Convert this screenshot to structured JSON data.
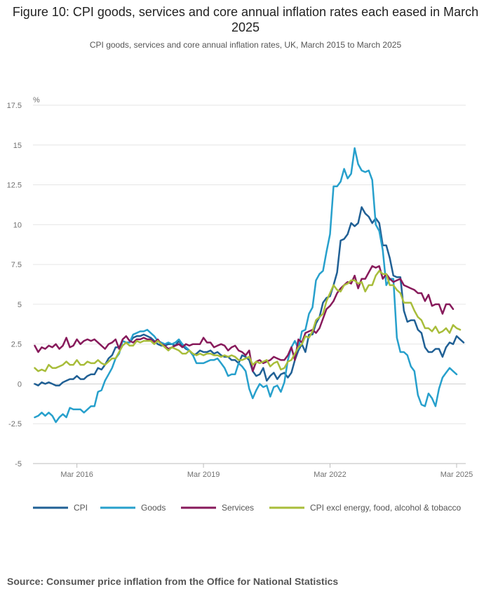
{
  "page": {
    "title": "Figure 10: CPI goods, services and core annual inflation rates each eased in March 2025",
    "subtitle": "CPI goods, services and core annual inflation rates, UK, March 2015 to March 2025",
    "source": "Source: Consumer price inflation from the Office for National Statistics"
  },
  "chart_data": {
    "type": "line",
    "y_unit_label": "%",
    "ylim": [
      -5,
      17.5
    ],
    "y_ticks": [
      -5,
      -2.5,
      0,
      2.5,
      5,
      7.5,
      10,
      12.5,
      15,
      17.5
    ],
    "y_tick_labels": [
      "-5",
      "-2.5",
      "0",
      "2.5",
      "5",
      "7.5",
      "10",
      "12.5",
      "15",
      "17.5"
    ],
    "grid": true,
    "x_start": "Mar 2015",
    "x_end": "Mar 2025",
    "x_ticks": [
      {
        "label": "Mar 2016",
        "index": 12
      },
      {
        "label": "Mar 2019",
        "index": 48
      },
      {
        "label": "Mar 2022",
        "index": 84
      },
      {
        "label": "Mar 2025",
        "index": 120
      }
    ],
    "legend_position": "bottom",
    "colors": {
      "CPI": "#206095",
      "Goods": "#27a0cc",
      "Services": "#871a5b",
      "Core": "#a8bd3a"
    },
    "series": [
      {
        "name": "CPI",
        "key": "CPI",
        "values": [
          0.0,
          -0.1,
          0.1,
          0.0,
          0.1,
          0.0,
          -0.1,
          -0.1,
          0.1,
          0.2,
          0.3,
          0.3,
          0.5,
          0.3,
          0.3,
          0.5,
          0.6,
          0.6,
          1.0,
          0.9,
          1.2,
          1.6,
          1.8,
          2.3,
          2.3,
          2.7,
          2.6,
          2.6,
          2.9,
          3.0,
          3.0,
          3.1,
          3.0,
          2.9,
          2.7,
          2.5,
          2.4,
          2.4,
          2.5,
          2.5,
          2.4,
          2.7,
          2.4,
          2.2,
          2.1,
          1.8,
          1.9,
          2.1,
          2.0,
          2.0,
          2.1,
          1.9,
          2.0,
          1.8,
          1.7,
          1.7,
          1.5,
          1.5,
          1.3,
          1.8,
          1.7,
          1.5,
          0.8,
          0.5,
          0.6,
          1.0,
          0.2,
          0.5,
          0.7,
          0.3,
          0.6,
          0.7,
          0.4,
          0.7,
          1.5,
          2.1,
          2.5,
          2.0,
          3.1,
          3.1,
          3.8,
          4.2,
          5.1,
          5.4,
          5.5,
          6.2,
          7.0,
          9.0,
          9.1,
          9.4,
          10.1,
          9.9,
          10.1,
          11.1,
          10.7,
          10.5,
          10.1,
          10.4,
          10.1,
          8.7,
          8.7,
          7.9,
          6.8,
          6.7,
          6.7,
          4.6,
          3.9,
          4.0,
          4.0,
          3.4,
          3.2,
          2.3,
          2.0,
          2.0,
          2.2,
          2.2,
          1.7,
          2.3,
          2.6,
          2.5,
          3.0,
          2.8,
          2.6
        ]
      },
      {
        "name": "Goods",
        "key": "Goods",
        "values": [
          -2.1,
          -2.0,
          -1.8,
          -2.0,
          -1.8,
          -2.0,
          -2.4,
          -2.1,
          -1.9,
          -2.1,
          -1.5,
          -1.6,
          -1.6,
          -1.6,
          -1.8,
          -1.6,
          -1.4,
          -1.4,
          -0.5,
          -0.4,
          0.2,
          0.6,
          1.0,
          1.6,
          1.9,
          2.7,
          2.6,
          2.6,
          3.1,
          3.2,
          3.3,
          3.3,
          3.4,
          3.2,
          3.0,
          2.7,
          2.6,
          2.5,
          2.6,
          2.5,
          2.6,
          2.8,
          2.5,
          2.3,
          2.1,
          1.8,
          1.3,
          1.3,
          1.3,
          1.4,
          1.5,
          1.5,
          1.6,
          1.3,
          1.0,
          0.5,
          0.6,
          0.6,
          1.3,
          1.1,
          0.8,
          -0.3,
          -0.9,
          -0.4,
          0.0,
          -0.2,
          -0.1,
          -0.8,
          -0.2,
          -0.1,
          -0.5,
          0.1,
          1.5,
          2.3,
          2.7,
          2.2,
          3.3,
          3.4,
          4.4,
          4.8,
          6.5,
          6.9,
          7.1,
          8.3,
          9.4,
          12.4,
          12.4,
          12.7,
          13.5,
          12.9,
          13.2,
          14.8,
          13.8,
          13.4,
          13.3,
          13.4,
          12.8,
          10.0,
          9.6,
          8.4,
          6.2,
          6.6,
          6.6,
          2.9,
          2.0,
          2.0,
          1.8,
          1.1,
          0.8,
          -0.7,
          -1.3,
          -1.4,
          -0.6,
          -0.9,
          -1.4,
          -0.3,
          0.4,
          0.7,
          1.0,
          0.8,
          0.6
        ]
      },
      {
        "name": "Services",
        "key": "Services",
        "values": [
          2.4,
          2.0,
          2.3,
          2.2,
          2.4,
          2.3,
          2.5,
          2.2,
          2.4,
          2.9,
          2.3,
          2.4,
          2.8,
          2.5,
          2.7,
          2.8,
          2.7,
          2.8,
          2.6,
          2.4,
          2.2,
          2.5,
          2.6,
          2.8,
          2.2,
          2.8,
          3.0,
          2.7,
          2.6,
          2.8,
          2.8,
          2.9,
          2.8,
          2.8,
          2.6,
          2.8,
          2.5,
          2.4,
          2.2,
          2.3,
          2.4,
          2.5,
          2.3,
          2.5,
          2.4,
          2.5,
          2.5,
          2.5,
          2.9,
          2.6,
          2.6,
          2.3,
          2.4,
          2.5,
          2.4,
          2.1,
          2.3,
          2.4,
          2.1,
          2.0,
          1.8,
          2.1,
          0.8,
          1.4,
          1.5,
          1.3,
          1.4,
          1.5,
          1.7,
          1.6,
          1.5,
          1.5,
          1.8,
          2.3,
          1.5,
          2.8,
          2.6,
          3.2,
          3.3,
          3.4,
          3.2,
          3.5,
          4.1,
          4.7,
          4.9,
          5.2,
          5.7,
          6.0,
          6.2,
          6.4,
          6.3,
          6.8,
          6.0,
          6.6,
          6.6,
          7.0,
          7.4,
          7.3,
          7.4,
          6.6,
          6.9,
          6.6,
          6.4,
          6.5,
          6.6,
          6.2,
          6.1,
          6.0,
          5.9,
          5.7,
          5.7,
          5.2,
          5.6,
          4.9,
          5.0,
          5.0,
          4.4,
          5.0,
          5.0,
          4.7
        ]
      },
      {
        "name": "CPI excl energy, food, alcohol & tobacco",
        "key": "Core",
        "values": [
          1.0,
          0.8,
          0.9,
          0.8,
          1.2,
          1.0,
          1.0,
          1.1,
          1.2,
          1.4,
          1.2,
          1.2,
          1.5,
          1.2,
          1.2,
          1.4,
          1.3,
          1.3,
          1.5,
          1.3,
          1.2,
          1.4,
          1.6,
          1.6,
          2.0,
          2.4,
          2.6,
          2.4,
          2.4,
          2.7,
          2.6,
          2.7,
          2.7,
          2.7,
          2.5,
          2.7,
          2.5,
          2.3,
          2.1,
          2.3,
          2.2,
          2.1,
          1.9,
          1.9,
          2.1,
          1.9,
          1.8,
          1.9,
          1.8,
          1.9,
          1.9,
          1.8,
          1.8,
          1.7,
          1.8,
          1.7,
          1.8,
          1.7,
          1.5,
          1.5,
          1.6,
          1.7,
          1.2,
          1.4,
          1.3,
          1.4,
          1.5,
          1.1,
          1.3,
          1.4,
          0.9,
          1.0,
          1.4,
          1.5,
          1.9,
          2.3,
          2.5,
          3.0,
          2.9,
          3.3,
          4.0,
          4.2,
          4.4,
          5.2,
          5.7,
          6.2,
          5.9,
          5.8,
          6.2,
          6.3,
          6.5,
          6.5,
          6.3,
          6.4,
          5.8,
          6.2,
          6.2,
          6.8,
          7.1,
          6.9,
          6.9,
          6.2,
          6.2,
          5.9,
          5.7,
          5.1,
          5.1,
          5.1,
          4.6,
          4.2,
          4.0,
          3.5,
          3.5,
          3.3,
          3.6,
          3.2,
          3.3,
          3.5,
          3.2,
          3.7,
          3.5,
          3.4
        ]
      }
    ]
  }
}
